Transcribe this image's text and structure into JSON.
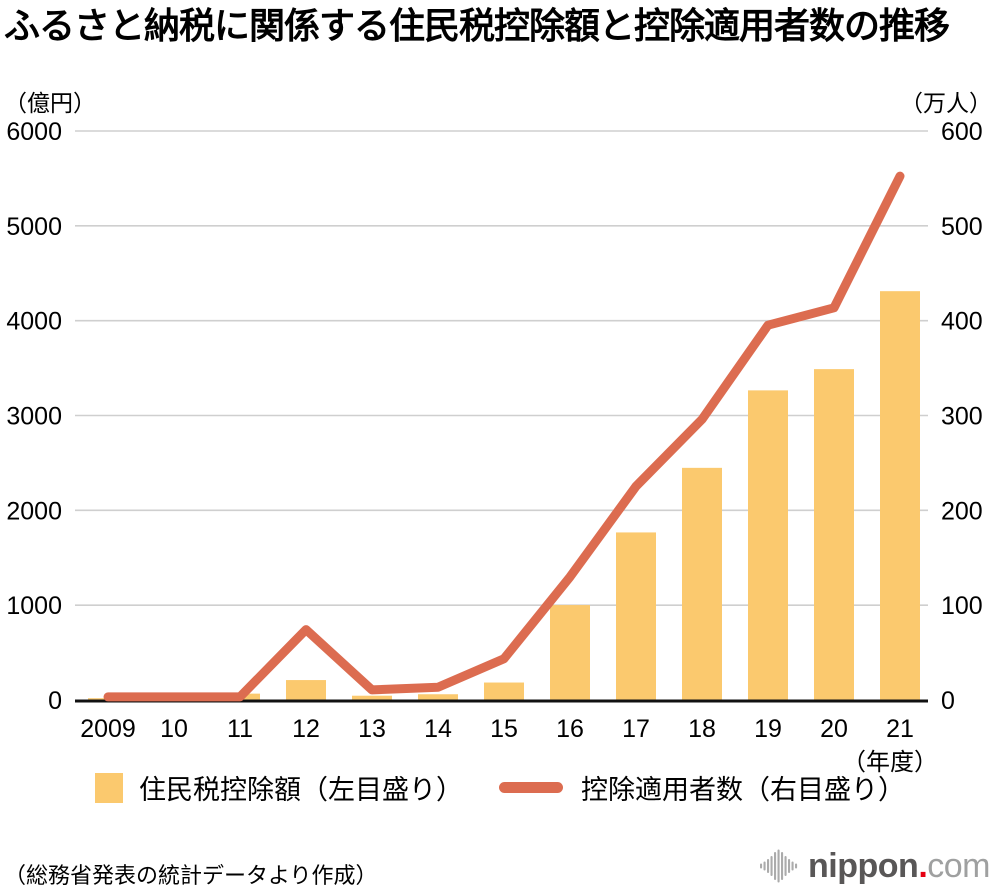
{
  "title": "ふるさと納税に関係する住民税控除額と控除適用者数の推移",
  "axis_units": {
    "left": "（億円）",
    "right": "（万人）",
    "x": "（年度）"
  },
  "legend": {
    "bar_label": "住民税控除額（左目盛り）",
    "line_label": "控除適用者数（右目盛り）"
  },
  "footer": {
    "source_note": "（総務省発表の統計データより作成）",
    "logo": {
      "icon": "waveform-icon",
      "brand": "nippon",
      "dot": ".",
      "tld": "com"
    }
  },
  "colors": {
    "bar": "#FBC96E",
    "line": "#DC6C50",
    "grid": "#CFCFCF",
    "axis": "#111111",
    "tick_text": "#000000",
    "logo_brand": "#595757",
    "logo_tld": "#9FA0A0",
    "logo_dot": "#E60012",
    "logo_icon": "#ABABAB"
  },
  "chart_data": {
    "type": "bar+line combo",
    "categories": [
      "2009",
      "10",
      "11",
      "12",
      "13",
      "14",
      "15",
      "16",
      "17",
      "18",
      "19",
      "20",
      "21"
    ],
    "x_unit": "年度",
    "series": [
      {
        "name": "住民税控除額（左目盛り）",
        "type": "bar",
        "axis": "left",
        "unit": "億円",
        "values": [
          18.9,
          65.5,
          67.1,
          210.2,
          45.2,
          60.6,
          184.2,
          1001,
          1767,
          2448,
          3265,
          3489,
          4311
        ]
      },
      {
        "name": "控除適用者数（右目盛り）",
        "type": "line",
        "axis": "right",
        "unit": "万人",
        "values": [
          3.3,
          3.3,
          3.3,
          74.2,
          10.6,
          13.4,
          43.5,
          129.8,
          225.3,
          295.9,
          395.2,
          413.6,
          552.4
        ]
      }
    ],
    "left_axis": {
      "label": "（億円）",
      "min": 0,
      "max": 6000,
      "ticks": [
        0,
        1000,
        2000,
        3000,
        4000,
        5000,
        6000
      ]
    },
    "right_axis": {
      "label": "（万人）",
      "min": 0,
      "max": 600,
      "ticks": [
        0,
        100,
        200,
        300,
        400,
        500,
        600
      ]
    },
    "grid": true,
    "legend_position": "bottom"
  }
}
